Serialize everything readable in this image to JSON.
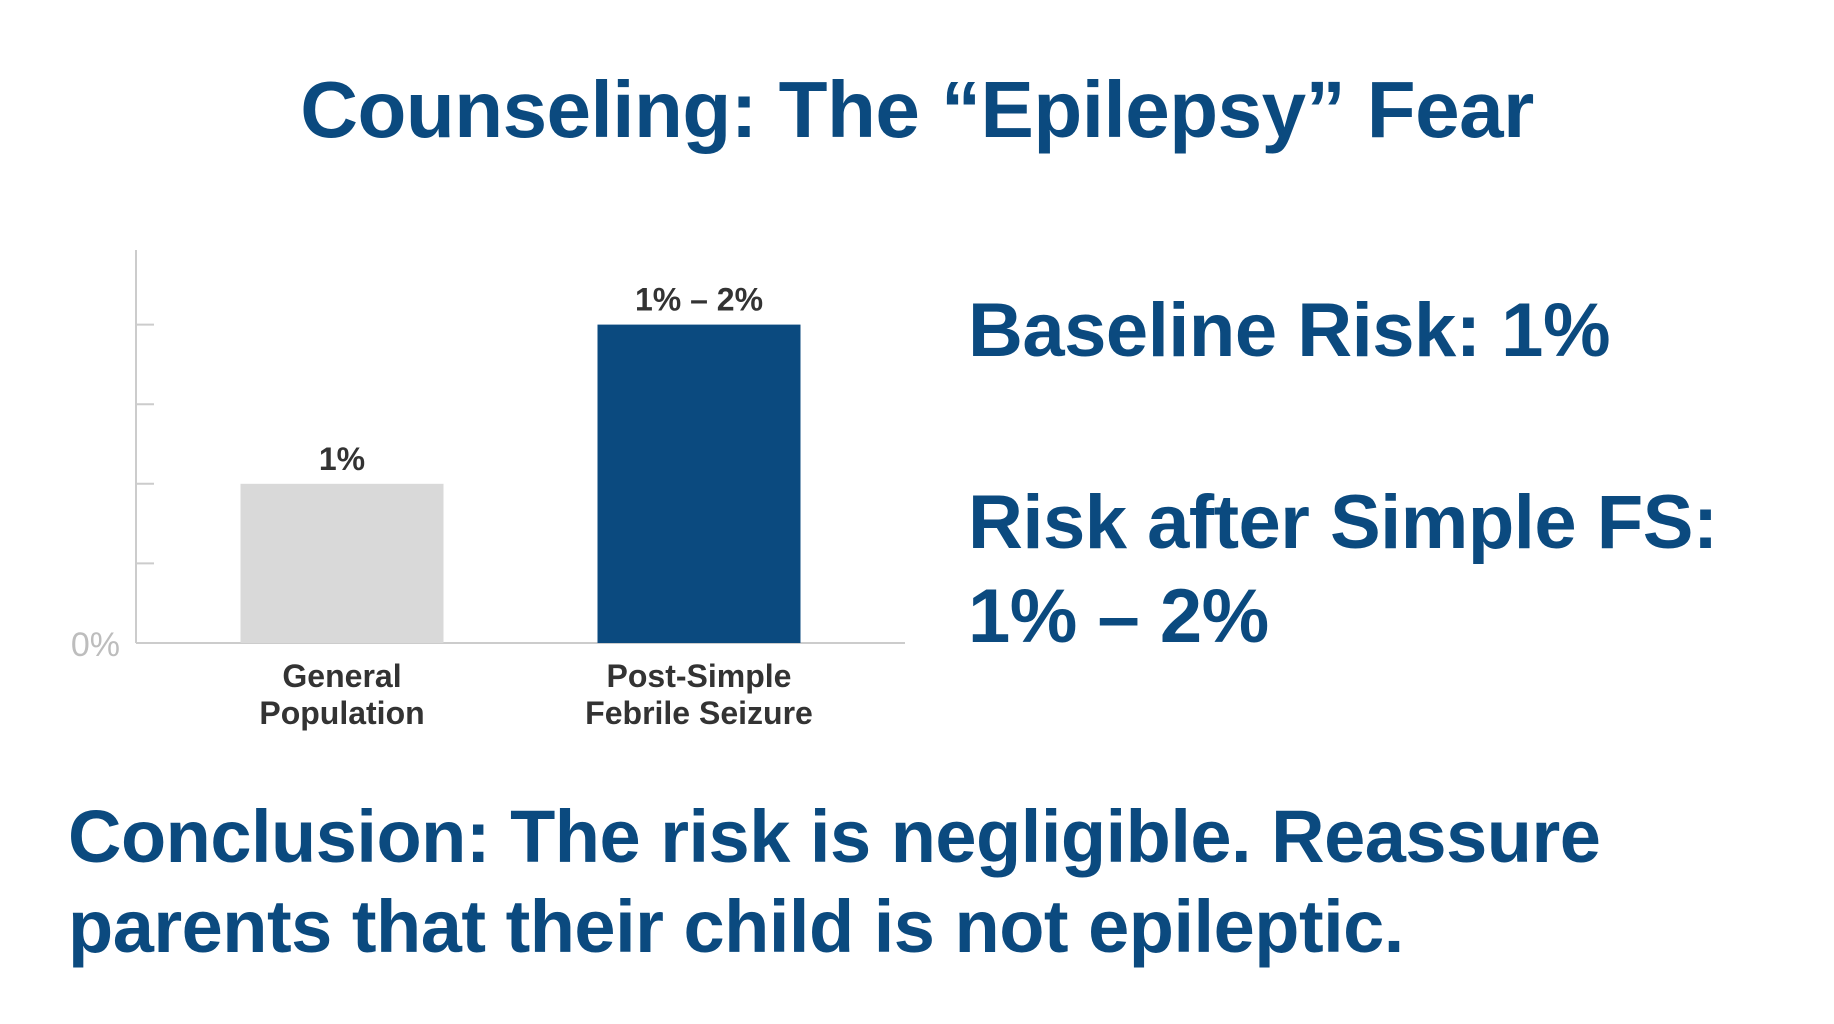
{
  "slide": {
    "title": "Counseling: The “Epilepsy” Fear"
  },
  "chart_data": {
    "type": "bar",
    "title": "",
    "xlabel": "",
    "ylabel": "",
    "ylim": [
      0,
      2.5
    ],
    "grid": false,
    "y_tick_label": "0%",
    "categories": [
      "General Population",
      "Post-Simple Febrile Seizure"
    ],
    "category_lines": [
      [
        "General",
        "Population"
      ],
      [
        "Post-Simple",
        "Febrile Seizure"
      ]
    ],
    "values": [
      1,
      2
    ],
    "data_labels": [
      "1%",
      "1% – 2%"
    ],
    "colors": [
      "#d9d9d9",
      "#0b4a7f"
    ]
  },
  "side": {
    "baseline": "Baseline Risk: 1%",
    "after_line1": "Risk after Simple FS:",
    "after_line2": "1% – 2%"
  },
  "conclusion": {
    "text": "Conclusion: The risk is negligible. Reassure parents that their child is not epileptic."
  },
  "colors": {
    "accent": "#0b4a7f",
    "bar_neutral": "#d9d9d9",
    "axis": "#cccccc"
  }
}
